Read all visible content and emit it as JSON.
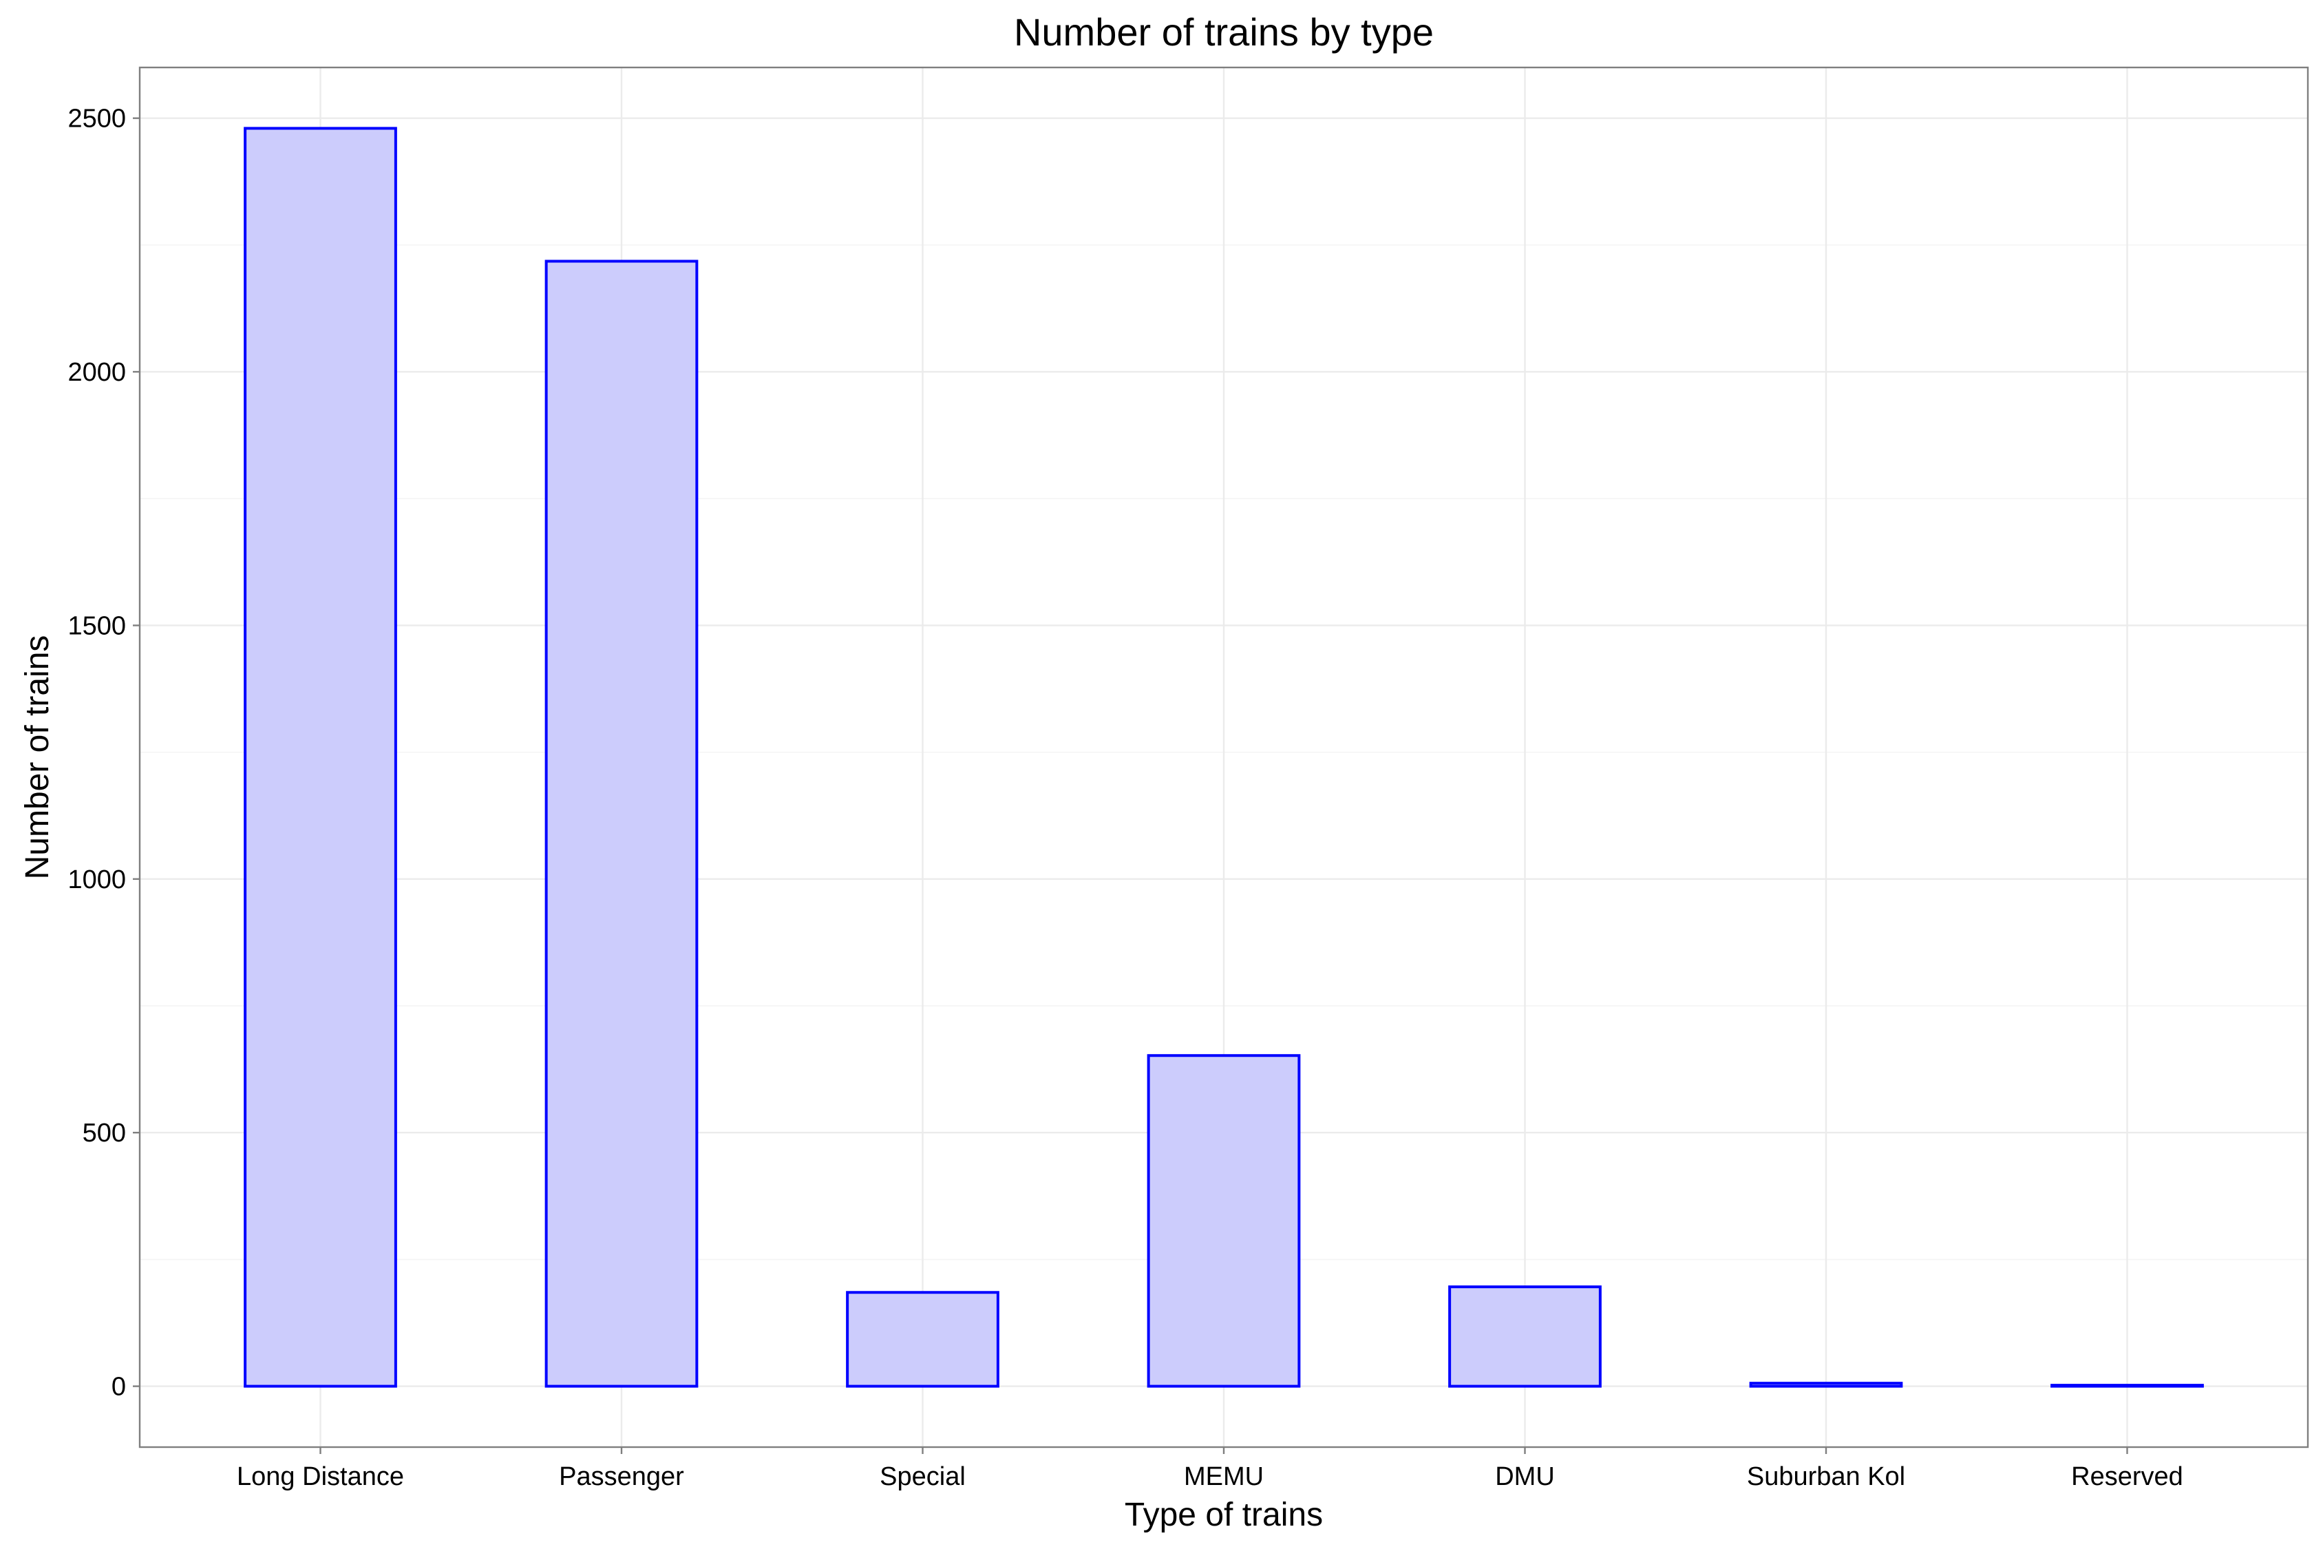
{
  "chart_data": {
    "type": "bar",
    "title": "Number of trains by type",
    "xlabel": "Type of trains",
    "ylabel": "Number of trains",
    "categories": [
      "Long Distance",
      "Passenger",
      "Special",
      "MEMU",
      "DMU",
      "Suburban Kol",
      "Reserved"
    ],
    "values": [
      2480,
      2218,
      185,
      652,
      196,
      6,
      2
    ],
    "ylim": [
      -120,
      2600
    ],
    "yticks": [
      "0",
      "500",
      "1000",
      "1500",
      "2000",
      "2500"
    ],
    "grid": true,
    "legend": "none",
    "bar_fill": "#ccccfc",
    "bar_outline": "#0000ff"
  }
}
